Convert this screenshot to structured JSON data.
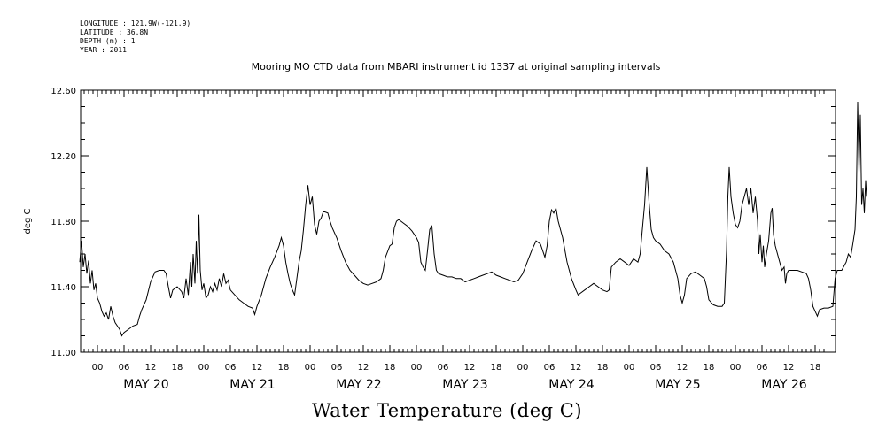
{
  "meta": {
    "longitude": "LONGITUDE : 121.9W(-121.9)",
    "latitude": "LATITUDE : 36.8N",
    "depth": "DEPTH (m) : 1",
    "year": "YEAR : 2011"
  },
  "chart_data": {
    "type": "line",
    "title": "Mooring MO CTD data from MBARI instrument id 1337 at original sampling intervals",
    "xlabel": "Water Temperature (deg C)",
    "ylabel": "deg C",
    "ylim": [
      11.0,
      12.6
    ],
    "xlim_hours": [
      -4,
      164
    ],
    "yticks": [
      "11.00",
      "11.40",
      "11.80",
      "12.20",
      "12.60"
    ],
    "hour_tick_labels": [
      "00",
      "06",
      "12",
      "18",
      "00",
      "06",
      "12",
      "18",
      "00",
      "06",
      "12",
      "18",
      "00",
      "06",
      "12",
      "18",
      "00",
      "06",
      "12",
      "18",
      "00",
      "06",
      "12",
      "18",
      "00",
      "06",
      "12",
      "18"
    ],
    "day_labels": [
      "MAY 20",
      "MAY 21",
      "MAY 22",
      "MAY 23",
      "MAY 24",
      "MAY 25",
      "MAY 26"
    ],
    "grid": false,
    "series": [
      {
        "values_by_hour_since_may20": [
          [
            -4,
            11.55
          ],
          [
            -3.6,
            11.68
          ],
          [
            -3.2,
            11.52
          ],
          [
            -2.8,
            11.6
          ],
          [
            -2.4,
            11.48
          ],
          [
            -2,
            11.56
          ],
          [
            -1.6,
            11.42
          ],
          [
            -1.2,
            11.5
          ],
          [
            -0.8,
            11.38
          ],
          [
            -0.4,
            11.42
          ],
          [
            0,
            11.33
          ],
          [
            0.5,
            11.3
          ],
          [
            1,
            11.25
          ],
          [
            1.5,
            11.22
          ],
          [
            2,
            11.24
          ],
          [
            2.5,
            11.2
          ],
          [
            3,
            11.28
          ],
          [
            3.5,
            11.22
          ],
          [
            4,
            11.18
          ],
          [
            4.5,
            11.16
          ],
          [
            5,
            11.14
          ],
          [
            5.5,
            11.1
          ],
          [
            6,
            11.12
          ],
          [
            7,
            11.14
          ],
          [
            8,
            11.16
          ],
          [
            9,
            11.17
          ],
          [
            9.5,
            11.22
          ],
          [
            10,
            11.26
          ],
          [
            11,
            11.32
          ],
          [
            12,
            11.43
          ],
          [
            13,
            11.49
          ],
          [
            14,
            11.5
          ],
          [
            15,
            11.5
          ],
          [
            15.5,
            11.48
          ],
          [
            16,
            11.4
          ],
          [
            16.5,
            11.33
          ],
          [
            17,
            11.38
          ],
          [
            18,
            11.4
          ],
          [
            19,
            11.37
          ],
          [
            19.5,
            11.33
          ],
          [
            20,
            11.45
          ],
          [
            20.5,
            11.35
          ],
          [
            21,
            11.55
          ],
          [
            21.3,
            11.4
          ],
          [
            21.6,
            11.6
          ],
          [
            22,
            11.42
          ],
          [
            22.3,
            11.68
          ],
          [
            22.6,
            11.48
          ],
          [
            22.9,
            11.84
          ],
          [
            23.2,
            11.5
          ],
          [
            23.6,
            11.38
          ],
          [
            24,
            11.42
          ],
          [
            24.5,
            11.33
          ],
          [
            25,
            11.35
          ],
          [
            25.5,
            11.4
          ],
          [
            26,
            11.37
          ],
          [
            26.5,
            11.42
          ],
          [
            27,
            11.38
          ],
          [
            27.5,
            11.45
          ],
          [
            28,
            11.4
          ],
          [
            28.5,
            11.48
          ],
          [
            29,
            11.42
          ],
          [
            29.5,
            11.44
          ],
          [
            30,
            11.38
          ],
          [
            31,
            11.35
          ],
          [
            32,
            11.32
          ],
          [
            33,
            11.3
          ],
          [
            34,
            11.28
          ],
          [
            35,
            11.27
          ],
          [
            35.5,
            11.23
          ],
          [
            36,
            11.28
          ],
          [
            37,
            11.35
          ],
          [
            38,
            11.45
          ],
          [
            39,
            11.52
          ],
          [
            40,
            11.58
          ],
          [
            41,
            11.65
          ],
          [
            41.5,
            11.7
          ],
          [
            42,
            11.65
          ],
          [
            42.5,
            11.55
          ],
          [
            43,
            11.48
          ],
          [
            43.5,
            11.42
          ],
          [
            44,
            11.38
          ],
          [
            44.5,
            11.35
          ],
          [
            45,
            11.45
          ],
          [
            45.5,
            11.55
          ],
          [
            46,
            11.62
          ],
          [
            46.5,
            11.75
          ],
          [
            47,
            11.9
          ],
          [
            47.5,
            12.02
          ],
          [
            48,
            11.9
          ],
          [
            48.5,
            11.95
          ],
          [
            49,
            11.78
          ],
          [
            49.5,
            11.72
          ],
          [
            50,
            11.8
          ],
          [
            50.5,
            11.82
          ],
          [
            51,
            11.86
          ],
          [
            52,
            11.85
          ],
          [
            52.5,
            11.8
          ],
          [
            53,
            11.76
          ],
          [
            54,
            11.7
          ],
          [
            55,
            11.62
          ],
          [
            56,
            11.55
          ],
          [
            57,
            11.5
          ],
          [
            58,
            11.47
          ],
          [
            59,
            11.44
          ],
          [
            60,
            11.42
          ],
          [
            61,
            11.41
          ],
          [
            62,
            11.42
          ],
          [
            63,
            11.43
          ],
          [
            64,
            11.45
          ],
          [
            64.5,
            11.5
          ],
          [
            65,
            11.58
          ],
          [
            66,
            11.65
          ],
          [
            66.5,
            11.66
          ],
          [
            67,
            11.76
          ],
          [
            67.5,
            11.8
          ],
          [
            68,
            11.81
          ],
          [
            69,
            11.79
          ],
          [
            70,
            11.77
          ],
          [
            71,
            11.74
          ],
          [
            72,
            11.7
          ],
          [
            72.5,
            11.67
          ],
          [
            73,
            11.55
          ],
          [
            73.5,
            11.52
          ],
          [
            74,
            11.5
          ],
          [
            74.5,
            11.62
          ],
          [
            75,
            11.75
          ],
          [
            75.5,
            11.77
          ],
          [
            76,
            11.6
          ],
          [
            76.5,
            11.5
          ],
          [
            77,
            11.48
          ],
          [
            78,
            11.47
          ],
          [
            79,
            11.46
          ],
          [
            80,
            11.46
          ],
          [
            81,
            11.45
          ],
          [
            82,
            11.45
          ],
          [
            83,
            11.43
          ],
          [
            84,
            11.44
          ],
          [
            85,
            11.45
          ],
          [
            86,
            11.46
          ],
          [
            87,
            11.47
          ],
          [
            88,
            11.48
          ],
          [
            89,
            11.49
          ],
          [
            90,
            11.47
          ],
          [
            91,
            11.46
          ],
          [
            92,
            11.45
          ],
          [
            93,
            11.44
          ],
          [
            94,
            11.43
          ],
          [
            95,
            11.44
          ],
          [
            96,
            11.48
          ],
          [
            97,
            11.55
          ],
          [
            98,
            11.62
          ],
          [
            99,
            11.68
          ],
          [
            100,
            11.66
          ],
          [
            101,
            11.58
          ],
          [
            101.5,
            11.65
          ],
          [
            102,
            11.8
          ],
          [
            102.5,
            11.87
          ],
          [
            103,
            11.85
          ],
          [
            103.5,
            11.88
          ],
          [
            104,
            11.8
          ],
          [
            105,
            11.7
          ],
          [
            106,
            11.55
          ],
          [
            107,
            11.45
          ],
          [
            108,
            11.38
          ],
          [
            108.5,
            11.35
          ],
          [
            109,
            11.36
          ],
          [
            110,
            11.38
          ],
          [
            111,
            11.4
          ],
          [
            112,
            11.42
          ],
          [
            113,
            11.4
          ],
          [
            114,
            11.38
          ],
          [
            115,
            11.37
          ],
          [
            115.5,
            11.38
          ],
          [
            116,
            11.52
          ],
          [
            117,
            11.55
          ],
          [
            118,
            11.57
          ],
          [
            119,
            11.55
          ],
          [
            120,
            11.53
          ],
          [
            121,
            11.57
          ],
          [
            122,
            11.55
          ],
          [
            122.5,
            11.6
          ],
          [
            123,
            11.75
          ],
          [
            123.5,
            11.9
          ],
          [
            124,
            12.13
          ],
          [
            124.5,
            11.92
          ],
          [
            125,
            11.75
          ],
          [
            125.5,
            11.7
          ],
          [
            126,
            11.68
          ],
          [
            127,
            11.66
          ],
          [
            128,
            11.62
          ],
          [
            129,
            11.6
          ],
          [
            130,
            11.55
          ],
          [
            131,
            11.45
          ],
          [
            131.5,
            11.35
          ],
          [
            132,
            11.3
          ],
          [
            132.5,
            11.35
          ],
          [
            133,
            11.45
          ],
          [
            134,
            11.48
          ],
          [
            135,
            11.49
          ],
          [
            136,
            11.47
          ],
          [
            137,
            11.45
          ],
          [
            137.5,
            11.4
          ],
          [
            138,
            11.32
          ],
          [
            139,
            11.29
          ],
          [
            140,
            11.28
          ],
          [
            141,
            11.28
          ],
          [
            141.5,
            11.3
          ],
          [
            142,
            11.62
          ],
          [
            142.3,
            11.95
          ],
          [
            142.6,
            12.13
          ],
          [
            143,
            11.95
          ],
          [
            143.5,
            11.85
          ],
          [
            144,
            11.78
          ],
          [
            144.5,
            11.76
          ],
          [
            145,
            11.8
          ],
          [
            145.5,
            11.9
          ],
          [
            146,
            11.95
          ],
          [
            146.5,
            12.0
          ],
          [
            147,
            11.9
          ],
          [
            147.5,
            12.0
          ],
          [
            148,
            11.85
          ],
          [
            148.5,
            11.95
          ],
          [
            149,
            11.8
          ],
          [
            149.3,
            11.6
          ],
          [
            149.6,
            11.72
          ],
          [
            150,
            11.55
          ],
          [
            150.3,
            11.65
          ],
          [
            150.6,
            11.52
          ],
          [
            151,
            11.6
          ],
          [
            151.5,
            11.68
          ],
          [
            152,
            11.85
          ],
          [
            152.3,
            11.88
          ],
          [
            152.6,
            11.72
          ],
          [
            153,
            11.65
          ],
          [
            153.5,
            11.6
          ],
          [
            154,
            11.55
          ],
          [
            154.5,
            11.5
          ],
          [
            155,
            11.52
          ],
          [
            155.3,
            11.42
          ],
          [
            155.6,
            11.48
          ],
          [
            156,
            11.5
          ],
          [
            157,
            11.5
          ],
          [
            158,
            11.5
          ],
          [
            159,
            11.49
          ],
          [
            160,
            11.48
          ],
          [
            160.5,
            11.45
          ],
          [
            161,
            11.38
          ],
          [
            161.5,
            11.28
          ],
          [
            162,
            11.25
          ],
          [
            162.5,
            11.22
          ],
          [
            163,
            11.26
          ],
          [
            164,
            11.27
          ],
          [
            165,
            11.27
          ],
          [
            166,
            11.28
          ],
          [
            166.5,
            11.45
          ],
          [
            167,
            11.5
          ],
          [
            168,
            11.5
          ],
          [
            169,
            11.55
          ],
          [
            169.5,
            11.6
          ],
          [
            170,
            11.58
          ],
          [
            170.5,
            11.66
          ],
          [
            171,
            11.75
          ],
          [
            171.3,
            11.95
          ],
          [
            171.6,
            12.53
          ],
          [
            171.9,
            12.1
          ],
          [
            172.2,
            12.45
          ],
          [
            172.5,
            11.9
          ],
          [
            172.8,
            12.0
          ],
          [
            173.1,
            11.85
          ],
          [
            173.4,
            12.05
          ],
          [
            173.6,
            11.95
          ]
        ]
      }
    ]
  }
}
